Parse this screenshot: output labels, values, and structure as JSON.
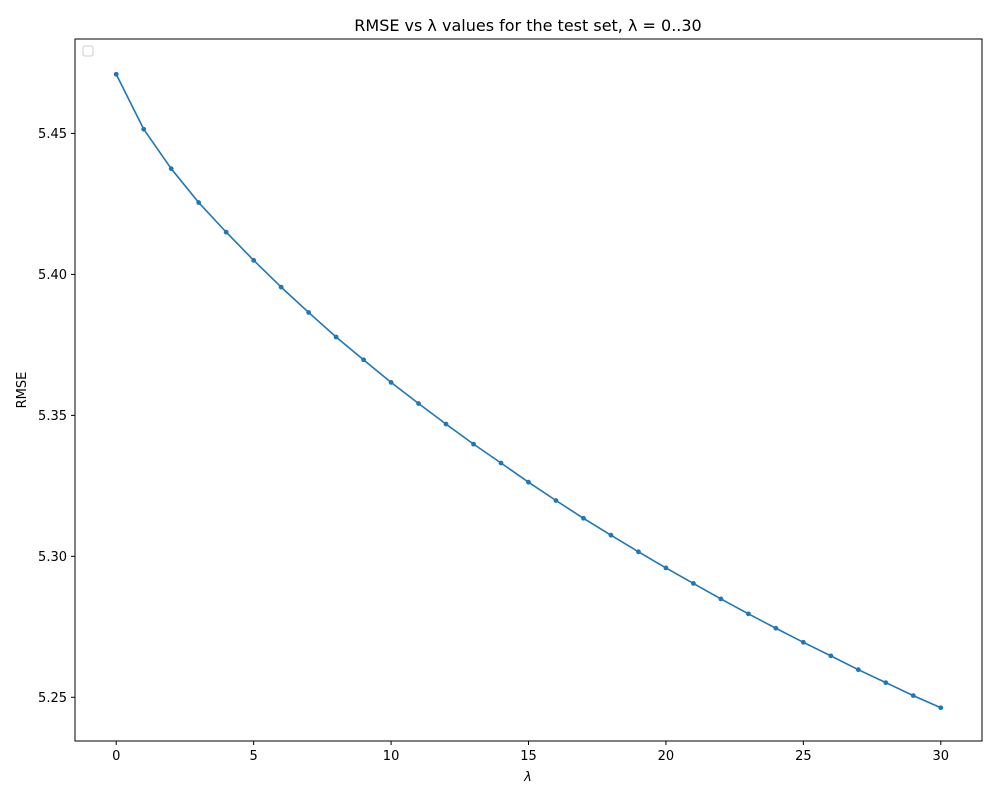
{
  "chart_data": {
    "type": "line",
    "title": "RMSE vs λ values for the test set, λ = 0..30",
    "xlabel": "λ",
    "ylabel": "RMSE",
    "xlim": [
      -1.5,
      31.5
    ],
    "ylim": [
      5.2345,
      5.4835
    ],
    "xticks": [
      0,
      5,
      10,
      15,
      20,
      25,
      30
    ],
    "yticks": [
      5.25,
      5.3,
      5.35,
      5.4,
      5.45
    ],
    "xtick_labels": [
      "0",
      "5",
      "10",
      "15",
      "20",
      "25",
      "30"
    ],
    "ytick_labels": [
      "5.25",
      "5.30",
      "5.35",
      "5.40",
      "5.45"
    ],
    "grid": false,
    "legend": {
      "location": "upper-left",
      "entries": []
    },
    "series": [
      {
        "color": "#1f77b4",
        "marker": "dot",
        "x": [
          0,
          1,
          2,
          3,
          4,
          5,
          6,
          7,
          8,
          9,
          10,
          11,
          12,
          13,
          14,
          15,
          16,
          17,
          18,
          19,
          20,
          21,
          22,
          23,
          24,
          25,
          26,
          27,
          28,
          29,
          30
        ],
        "y": [
          5.471,
          5.4515,
          5.4375,
          5.4255,
          5.415,
          5.405,
          5.3955,
          5.3865,
          5.3778,
          5.3697,
          5.3617,
          5.3542,
          5.3469,
          5.3398,
          5.3331,
          5.3263,
          5.3198,
          5.3135,
          5.3075,
          5.3016,
          5.2959,
          5.2904,
          5.2849,
          5.2796,
          5.2745,
          5.2695,
          5.2647,
          5.2598,
          5.2552,
          5.2506,
          5.2463
        ]
      }
    ]
  }
}
